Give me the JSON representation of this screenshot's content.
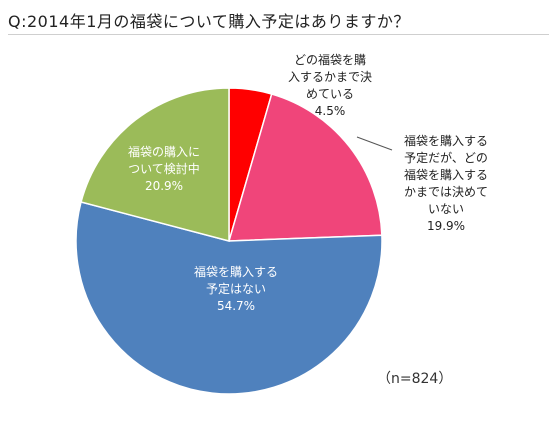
{
  "chart_data": {
    "type": "pie",
    "title": "Q:2014年1月の福袋について購入予定はありますか？",
    "note": "（n=824）",
    "slices": [
      {
        "label_lines": [
          "どの福袋を購",
          "入するかまで決",
          "めている"
        ],
        "value": 4.5,
        "value_label": "4.5%",
        "color": "#ff0000",
        "label_color": "#222222"
      },
      {
        "label_lines": [
          "福袋を購入する",
          "予定だが、どの",
          "福袋を購入する",
          "かまでは決めて",
          "いない"
        ],
        "value": 19.9,
        "value_label": "19.9%",
        "color": "#f0457a",
        "label_color": "#222222"
      },
      {
        "label_lines": [
          "福袋を購入する",
          "予定はない"
        ],
        "value": 54.7,
        "value_label": "54.7%",
        "color": "#4f81bd",
        "label_color": "#ffffff"
      },
      {
        "label_lines": [
          "福袋の購入に",
          "ついて検討中"
        ],
        "value": 20.9,
        "value_label": "20.9%",
        "color": "#9bbb59",
        "label_color": "#ffffff"
      }
    ]
  }
}
